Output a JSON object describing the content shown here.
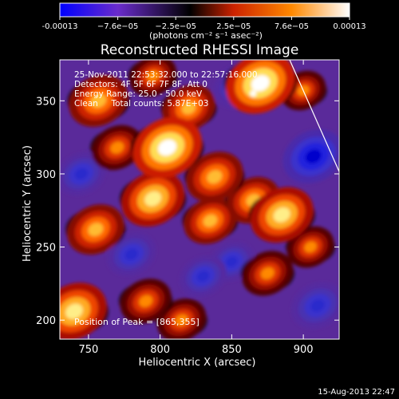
{
  "chart_data": {
    "type": "heatmap",
    "title": "Reconstructed RHESSI Image",
    "xlabel": "Heliocentric X (arcsec)",
    "ylabel": "Heliocentric Y (arcsec)",
    "xlim": [
      730,
      925
    ],
    "ylim": [
      187,
      378
    ],
    "x_ticks": [
      750,
      800,
      850,
      900
    ],
    "y_ticks": [
      200,
      250,
      300,
      350
    ],
    "colorbar": {
      "ticks": [
        "-0.00013",
        "−7.6e−05",
        "−2.5e−05",
        "2.5e−05",
        "7.6e−05",
        "0.00013"
      ],
      "range": [
        -0.00013,
        0.00013
      ],
      "label": "(photons cm⁻² s⁻¹ asec⁻²)",
      "colors": [
        "#0000ff",
        "#6a2ccc",
        "#000000",
        "#cc2200",
        "#ff8800",
        "#ffffff"
      ]
    },
    "annotations": [
      "25-Nov-2011 22:53:32.000 to 22:57:16.000",
      "Detectors: 4F 5F 6F 7F 8F, Att 0",
      "Energy Range: 25.0 - 50.0 keV",
      "Clean     Total counts: 5.87E+03"
    ],
    "peak_label": "Position of Peak = [865,355]",
    "peak": [
      865,
      355
    ],
    "blobs": [
      {
        "x": 870,
        "y": 362,
        "v": 1.0
      },
      {
        "x": 805,
        "y": 318,
        "v": 1.0
      },
      {
        "x": 795,
        "y": 283,
        "v": 0.85
      },
      {
        "x": 838,
        "y": 298,
        "v": 0.7
      },
      {
        "x": 885,
        "y": 272,
        "v": 0.85
      },
      {
        "x": 835,
        "y": 268,
        "v": 0.6
      },
      {
        "x": 865,
        "y": 282,
        "v": 0.6
      },
      {
        "x": 820,
        "y": 345,
        "v": 0.6
      },
      {
        "x": 757,
        "y": 350,
        "v": 0.75
      },
      {
        "x": 770,
        "y": 318,
        "v": 0.55
      },
      {
        "x": 755,
        "y": 262,
        "v": 0.7
      },
      {
        "x": 740,
        "y": 206,
        "v": 0.9
      },
      {
        "x": 790,
        "y": 213,
        "v": 0.55
      },
      {
        "x": 815,
        "y": 200,
        "v": 0.5
      },
      {
        "x": 875,
        "y": 232,
        "v": 0.55
      },
      {
        "x": 905,
        "y": 250,
        "v": 0.45
      },
      {
        "x": 900,
        "y": 357,
        "v": 0.4
      },
      {
        "x": 795,
        "y": 367,
        "v": 0.45
      },
      {
        "x": 850,
        "y": 240,
        "v": -0.4
      },
      {
        "x": 907,
        "y": 312,
        "v": -0.8
      },
      {
        "x": 855,
        "y": 360,
        "v": -0.55
      },
      {
        "x": 910,
        "y": 210,
        "v": -0.6
      },
      {
        "x": 780,
        "y": 245,
        "v": -0.5
      },
      {
        "x": 745,
        "y": 300,
        "v": -0.5
      },
      {
        "x": 830,
        "y": 230,
        "v": -0.45
      }
    ]
  },
  "footer": {
    "timestamp": "15-Aug-2013 22:47"
  }
}
